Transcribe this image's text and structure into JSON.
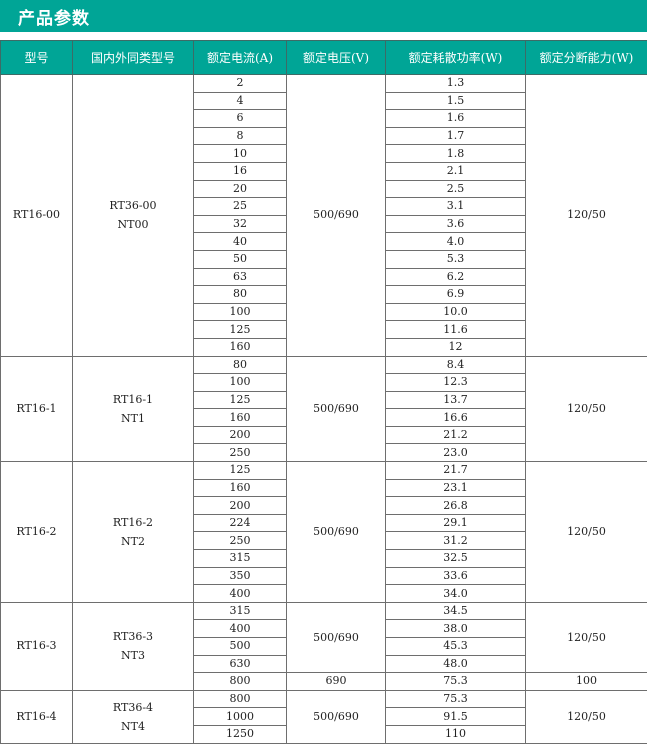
{
  "title": "产品参数",
  "colors": {
    "header_bg": "#00a596",
    "header_text": "#ffffff"
  },
  "table": {
    "headers": [
      "型号",
      "国内外同类型号",
      "额定电流(A)",
      "额定电压(V)",
      "额定耗散功率(W)",
      "额定分断能力(W)"
    ],
    "groups": [
      {
        "model": "RT16-00",
        "equivalent": [
          "RT36-00",
          "NT00"
        ],
        "rows": [
          [
            "2",
            "1.3"
          ],
          [
            "4",
            "1.5"
          ],
          [
            "6",
            "1.6"
          ],
          [
            "8",
            "1.7"
          ],
          [
            "10",
            "1.8"
          ],
          [
            "16",
            "2.1"
          ],
          [
            "20",
            "2.5"
          ],
          [
            "25",
            "3.1"
          ],
          [
            "32",
            "3.6"
          ],
          [
            "40",
            "4.0"
          ],
          [
            "50",
            "5.3"
          ],
          [
            "63",
            "6.2"
          ],
          [
            "80",
            "6.9"
          ],
          [
            "100",
            "10.0"
          ],
          [
            "125",
            "11.6"
          ],
          [
            "160",
            "12"
          ]
        ],
        "voltage": [
          {
            "value": "500/690",
            "span": 16
          }
        ],
        "breaking": [
          {
            "value": "120/50",
            "span": 16
          }
        ]
      },
      {
        "model": "RT16-1",
        "equivalent": [
          "RT16-1",
          "NT1"
        ],
        "rows": [
          [
            "80",
            "8.4"
          ],
          [
            "100",
            "12.3"
          ],
          [
            "125",
            "13.7"
          ],
          [
            "160",
            "16.6"
          ],
          [
            "200",
            "21.2"
          ],
          [
            "250",
            "23.0"
          ]
        ],
        "voltage": [
          {
            "value": "500/690",
            "span": 6
          }
        ],
        "breaking": [
          {
            "value": "120/50",
            "span": 6
          }
        ]
      },
      {
        "model": "RT16-2",
        "equivalent": [
          "RT16-2",
          "NT2"
        ],
        "rows": [
          [
            "125",
            "21.7"
          ],
          [
            "160",
            "23.1"
          ],
          [
            "200",
            "26.8"
          ],
          [
            "224",
            "29.1"
          ],
          [
            "250",
            "31.2"
          ],
          [
            "315",
            "32.5"
          ],
          [
            "350",
            "33.6"
          ],
          [
            "400",
            "34.0"
          ]
        ],
        "voltage": [
          {
            "value": "500/690",
            "span": 8
          }
        ],
        "breaking": [
          {
            "value": "120/50",
            "span": 8
          }
        ]
      },
      {
        "model": "RT16-3",
        "equivalent": [
          "RT36-3",
          "NT3"
        ],
        "rows": [
          [
            "315",
            "34.5"
          ],
          [
            "400",
            "38.0"
          ],
          [
            "500",
            "45.3"
          ],
          [
            "630",
            "48.0"
          ],
          [
            "800",
            "75.3"
          ]
        ],
        "voltage": [
          {
            "value": "500/690",
            "span": 4
          },
          {
            "value": "690",
            "span": 1
          }
        ],
        "breaking": [
          {
            "value": "120/50",
            "span": 4
          },
          {
            "value": "100",
            "span": 1
          }
        ]
      },
      {
        "model": "RT16-4",
        "equivalent": [
          "RT36-4",
          "NT4"
        ],
        "rows": [
          [
            "800",
            "75.3"
          ],
          [
            "1000",
            "91.5"
          ],
          [
            "1250",
            "110"
          ]
        ],
        "voltage": [
          {
            "value": "500/690",
            "span": 3
          }
        ],
        "breaking": [
          {
            "value": "120/50",
            "span": 3
          }
        ]
      }
    ]
  }
}
